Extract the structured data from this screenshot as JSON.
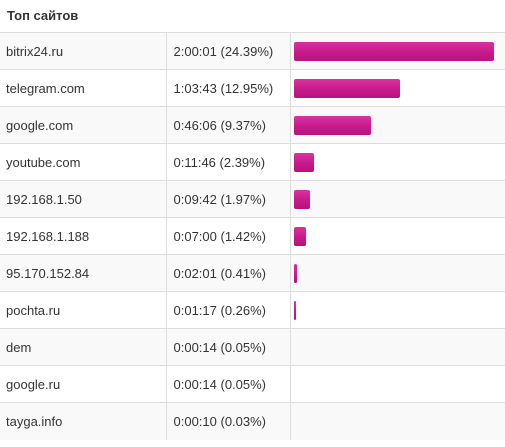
{
  "widget": {
    "title": "Топ сайтов",
    "bar_color": "#c71a8a",
    "rows": [
      {
        "site": "bitrix24.ru",
        "time": "2:00:01 (24.39%)",
        "fraction": 1.0
      },
      {
        "site": "telegram.com",
        "time": "1:03:43 (12.95%)",
        "fraction": 0.531
      },
      {
        "site": "google.com",
        "time": "0:46:06 (9.37%)",
        "fraction": 0.384
      },
      {
        "site": "youtube.com",
        "time": "0:11:46 (2.39%)",
        "fraction": 0.098
      },
      {
        "site": "192.168.1.50",
        "time": "0:09:42 (1.97%)",
        "fraction": 0.081
      },
      {
        "site": "192.168.1.188",
        "time": "0:07:00 (1.42%)",
        "fraction": 0.058
      },
      {
        "site": "95.170.152.84",
        "time": "0:02:01 (0.41%)",
        "fraction": 0.017
      },
      {
        "site": "pochta.ru",
        "time": "0:01:17 (0.26%)",
        "fraction": 0.011
      },
      {
        "site": "dem",
        "time": "0:00:14 (0.05%)",
        "fraction": 0.002
      },
      {
        "site": "google.ru",
        "time": "0:00:14 (0.05%)",
        "fraction": 0.002
      },
      {
        "site": "tayga.info",
        "time": "0:00:10 (0.03%)",
        "fraction": 0.001
      }
    ]
  }
}
